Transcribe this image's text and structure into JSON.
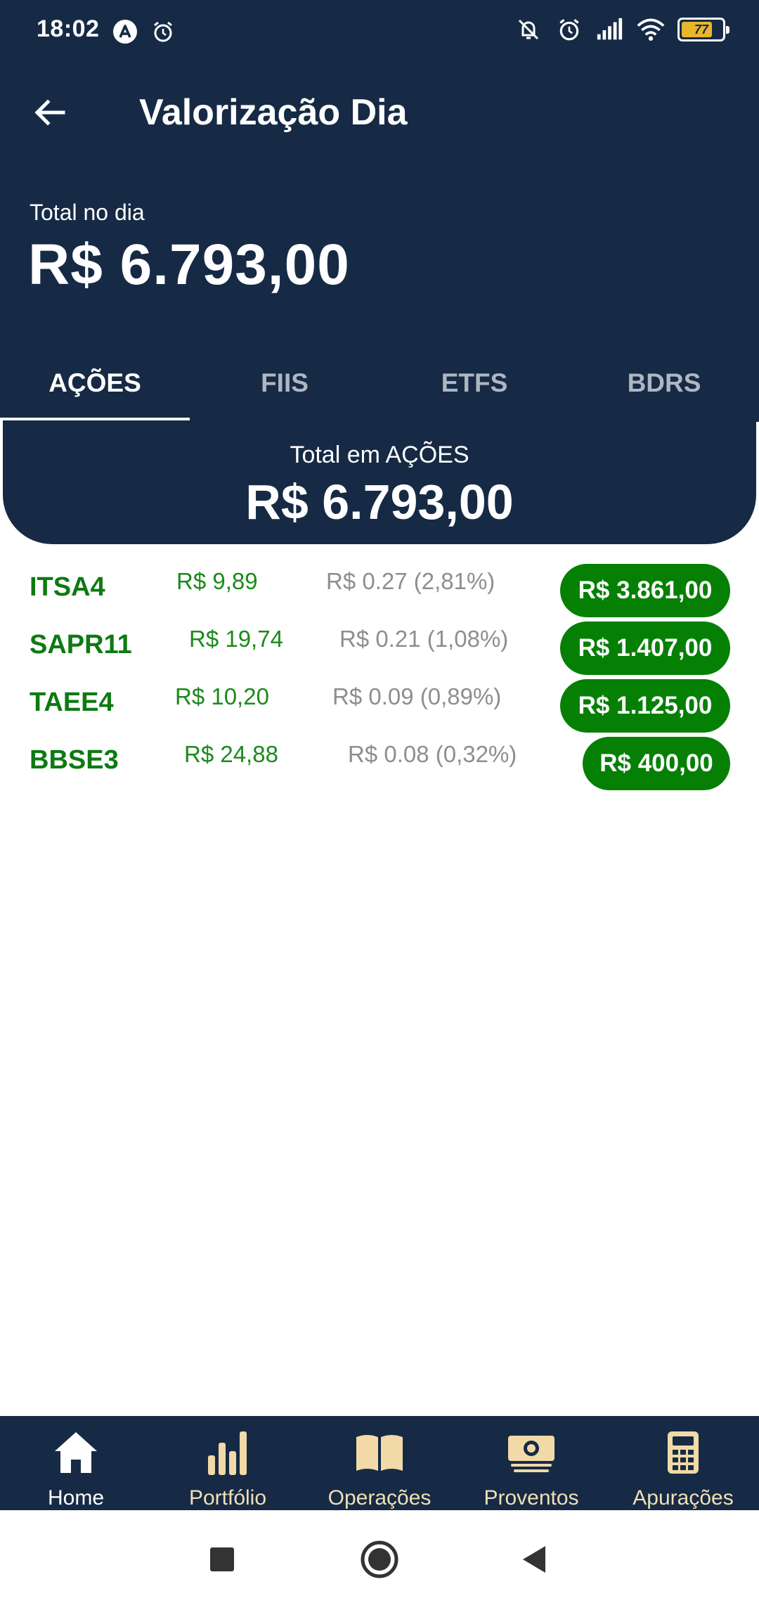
{
  "status_bar": {
    "time": "18:02",
    "left_icons": [
      "a-circle-icon",
      "alarm-icon"
    ],
    "right_icons": [
      "bell-off-icon",
      "alarm-icon",
      "signal-icon",
      "wifi-icon",
      "battery-icon"
    ],
    "battery_percent": "77"
  },
  "header": {
    "title": "Valorização Dia",
    "total_label": "Total no dia",
    "total_value": "R$ 6.793,00"
  },
  "tabs": [
    {
      "label": "AÇÕES",
      "active": true
    },
    {
      "label": "FIIS",
      "active": false
    },
    {
      "label": "ETFS",
      "active": false
    },
    {
      "label": "BDRS",
      "active": false
    }
  ],
  "summary": {
    "label": "Total em AÇÕES",
    "value": "R$ 6.793,00"
  },
  "rows": [
    {
      "ticker": "ITSA4",
      "price": "R$ 9,89",
      "change": "R$ 0.27 (2,81%)",
      "total": "R$ 3.861,00"
    },
    {
      "ticker": "SAPR11",
      "price": "R$ 19,74",
      "change": "R$ 0.21 (1,08%)",
      "total": "R$ 1.407,00"
    },
    {
      "ticker": "TAEE4",
      "price": "R$ 10,20",
      "change": "R$ 0.09 (0,89%)",
      "total": "R$ 1.125,00"
    },
    {
      "ticker": "BBSE3",
      "price": "R$ 24,88",
      "change": "R$ 0.08 (0,32%)",
      "total": "R$ 400,00"
    }
  ],
  "bottom_nav": [
    {
      "label": "Home",
      "icon": "home-icon",
      "active": true
    },
    {
      "label": "Portfólio",
      "icon": "bar-chart-icon",
      "active": false
    },
    {
      "label": "Operações",
      "icon": "book-icon",
      "active": false
    },
    {
      "label": "Proventos",
      "icon": "money-icon",
      "active": false
    },
    {
      "label": "Apurações",
      "icon": "calculator-icon",
      "active": false
    }
  ],
  "colors": {
    "primary_navy": "#162a45",
    "positive_green": "#058005",
    "nav_label": "#f1dfb6",
    "accent_cream": "#f1d9a8"
  }
}
